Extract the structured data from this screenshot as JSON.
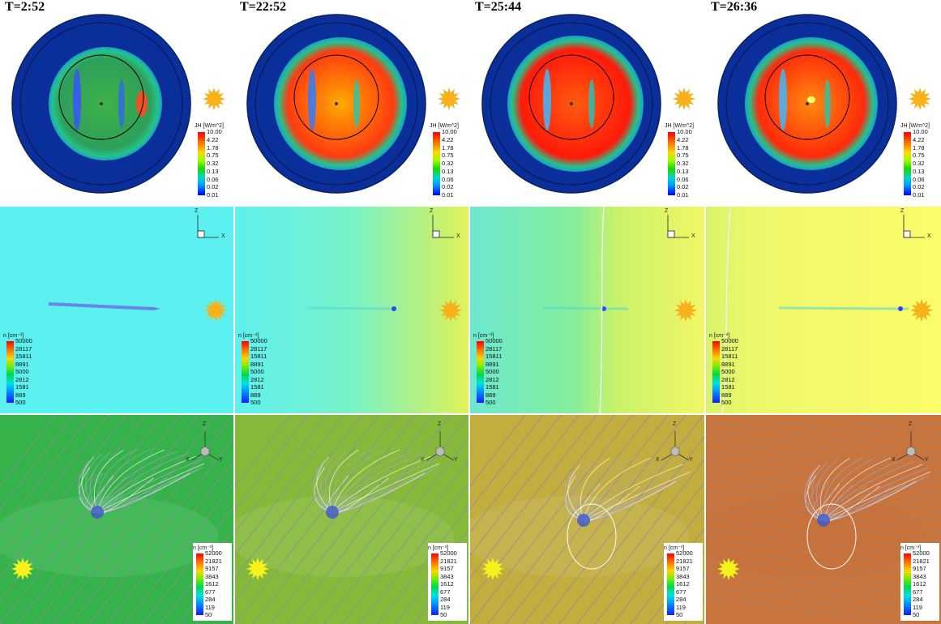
{
  "panels": [
    {
      "time": "T=2:52"
    },
    {
      "time": "T=22:52"
    },
    {
      "time": "T=25:44"
    },
    {
      "time": "T=26:36"
    }
  ],
  "row1_colorbar": {
    "title": "JH [W/m^2]",
    "labels": [
      "10.00",
      "4.22",
      "1.78",
      "0.75",
      "0.32",
      "0.13",
      "0.06",
      "0.02",
      "0.01"
    ]
  },
  "row2_colorbar": {
    "title": "n [cm⁻³]",
    "labels": [
      "50000",
      "28117",
      "15811",
      "8891",
      "5000",
      "2812",
      "1581",
      "889",
      "500"
    ]
  },
  "row3_colorbar": {
    "title": "n [cm⁻³]",
    "labels": [
      "52000",
      "21821",
      "9157",
      "3843",
      "1612",
      "677",
      "284",
      "119",
      "50"
    ]
  },
  "axes2d": {
    "z": "Z",
    "x": "X"
  },
  "axes3d": {
    "z": "Z",
    "x": "X",
    "y": "Y"
  },
  "colors": {
    "row1_bg": "#ffffff",
    "disk_outer": "#0b2f9a",
    "row2_c1": "#5cf0f0",
    "row2_c4": "#fbfd6a",
    "row3_c1": "#35b34a",
    "row3_c4": "#c8743a",
    "sun": "#f7b21b"
  }
}
